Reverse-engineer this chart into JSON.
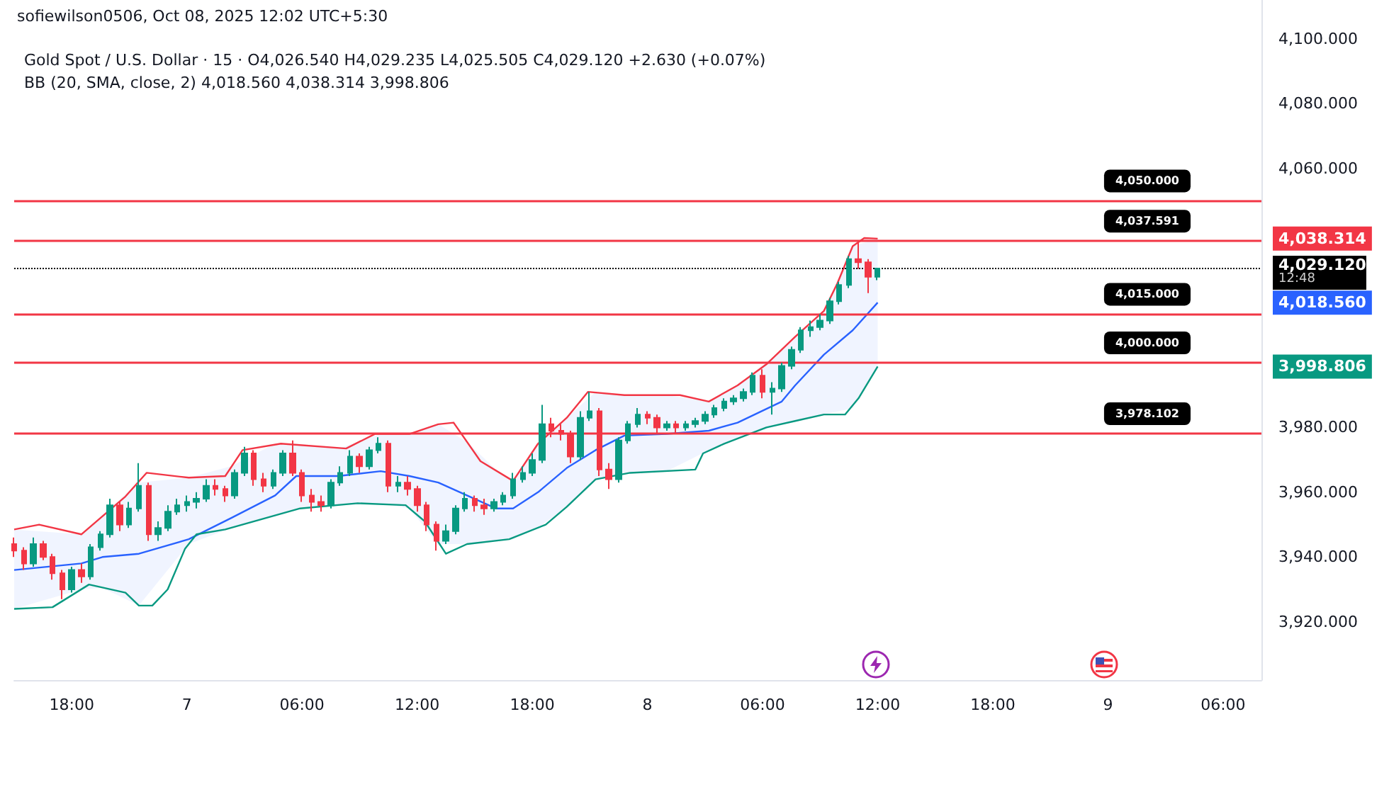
{
  "chart_data": {
    "type": "candlestick",
    "title": "Gold Spot / U.S. Dollar · 15 · O4,026.540 H4,029.235 L4,025.505 C4,029.120 +2.630 (+0.07%)",
    "subtitle": "BB (20, SMA, close, 2) 4,018.560 4,038.314 3,998.806",
    "annotations": [
      "sofiewilson0506, Oct 08, 2025 12:02 UTC+5:30",
      "12:48"
    ],
    "xlim": [
      "2025-10-06T15:00",
      "2025-10-09T08:00"
    ],
    "xticks": [
      {
        "value": "2025-10-06T18:00",
        "label": "18:00"
      },
      {
        "value": "2025-10-07T00:00",
        "label": "7"
      },
      {
        "value": "2025-10-07T06:00",
        "label": "06:00"
      },
      {
        "value": "2025-10-07T12:00",
        "label": "12:00"
      },
      {
        "value": "2025-10-07T18:00",
        "label": "18:00"
      },
      {
        "value": "2025-10-08T00:00",
        "label": "8"
      },
      {
        "value": "2025-10-08T06:00",
        "label": "06:00"
      },
      {
        "value": "2025-10-08T12:00",
        "label": "12:00"
      },
      {
        "value": "2025-10-08T18:00",
        "label": "18:00"
      },
      {
        "value": "2025-10-09T00:00",
        "label": "9"
      },
      {
        "value": "2025-10-09T06:00",
        "label": "06:00"
      }
    ],
    "ylim": [
      3902,
      4112
    ],
    "yticks": [
      {
        "value": 3920,
        "label": "3,920.000"
      },
      {
        "value": 3940,
        "label": "3,940.000"
      },
      {
        "value": 3960,
        "label": "3,960.000"
      },
      {
        "value": 3980,
        "label": "3,980.000"
      },
      {
        "value": 3998.806,
        "label": "3,998.806"
      },
      {
        "value": 4018.56,
        "label": "4,018.560"
      },
      {
        "value": 4038.314,
        "label": "4,038.314"
      },
      {
        "value": 4060,
        "label": "4,060.000"
      },
      {
        "value": 4080,
        "label": "4,080.000"
      },
      {
        "value": 4100,
        "label": "4,100.000"
      }
    ],
    "ref_lines": [
      {
        "axis": "y",
        "value": 4050,
        "label": "4,050.000",
        "color": "#f23645",
        "line_style": "solid"
      },
      {
        "axis": "y",
        "value": 4037.591,
        "label": "4,037.591",
        "color": "#f23645",
        "line_style": "solid"
      },
      {
        "axis": "y",
        "value": 4015,
        "label": "4,015.000",
        "color": "#f23645",
        "line_style": "solid"
      },
      {
        "axis": "y",
        "value": 4000,
        "label": "4,000.000",
        "color": "#f23645",
        "line_style": "solid"
      },
      {
        "axis": "y",
        "value": 3978.102,
        "label": "3,978.102",
        "color": "#f23645",
        "line_style": "solid"
      },
      {
        "axis": "y",
        "value": 4029.12,
        "label": "4,029.120",
        "color": "#000000",
        "line_style": "dotted"
      }
    ],
    "series": [
      {
        "x": [
          "2025-10-06T15:00",
          "2025-10-06T15:30",
          "2025-10-06T16:00",
          "2025-10-06T16:30",
          "2025-10-06T17:00",
          "2025-10-06T17:30",
          "2025-10-06T18:00",
          "2025-10-06T18:30",
          "2025-10-06T19:00",
          "2025-10-06T19:30",
          "2025-10-06T20:00",
          "2025-10-06T20:30",
          "2025-10-06T21:00",
          "2025-10-06T21:30",
          "2025-10-06T22:00",
          "2025-10-06T22:30",
          "2025-10-06T23:00",
          "2025-10-06T23:30",
          "2025-10-07T00:00",
          "2025-10-07T00:30",
          "2025-10-07T01:00",
          "2025-10-07T01:30",
          "2025-10-07T02:00",
          "2025-10-07T02:30",
          "2025-10-07T03:00",
          "2025-10-07T03:30",
          "2025-10-07T04:00",
          "2025-10-07T04:30",
          "2025-10-07T05:00",
          "2025-10-07T05:30",
          "2025-10-07T06:00",
          "2025-10-07T06:30",
          "2025-10-07T07:00",
          "2025-10-07T07:30",
          "2025-10-07T08:00",
          "2025-10-07T08:30",
          "2025-10-07T09:00",
          "2025-10-07T09:30",
          "2025-10-07T10:00",
          "2025-10-07T10:30",
          "2025-10-07T11:00",
          "2025-10-07T11:30",
          "2025-10-07T12:00",
          "2025-10-07T12:30",
          "2025-10-07T13:00",
          "2025-10-07T13:30",
          "2025-10-07T14:00",
          "2025-10-07T14:30",
          "2025-10-07T15:00",
          "2025-10-07T15:30",
          "2025-10-07T16:00",
          "2025-10-07T16:30",
          "2025-10-07T17:00",
          "2025-10-07T17:30",
          "2025-10-07T18:00",
          "2025-10-07T18:30",
          "2025-10-07T19:00",
          "2025-10-07T19:30",
          "2025-10-07T20:00",
          "2025-10-07T20:30",
          "2025-10-07T21:00",
          "2025-10-07T21:30",
          "2025-10-07T22:00",
          "2025-10-07T22:30",
          "2025-10-07T23:00",
          "2025-10-07T23:30",
          "2025-10-08T00:00",
          "2025-10-08T00:30",
          "2025-10-08T01:00",
          "2025-10-08T01:30",
          "2025-10-08T02:00",
          "2025-10-08T02:30",
          "2025-10-08T03:00",
          "2025-10-08T03:30",
          "2025-10-08T04:00",
          "2025-10-08T04:30",
          "2025-10-08T05:00",
          "2025-10-08T05:30",
          "2025-10-08T06:00",
          "2025-10-08T06:30",
          "2025-10-08T07:00",
          "2025-10-08T07:30",
          "2025-10-08T08:00",
          "2025-10-08T08:30",
          "2025-10-08T09:00",
          "2025-10-08T09:30",
          "2025-10-08T10:00",
          "2025-10-08T10:30",
          "2025-10-08T11:00",
          "2025-10-08T11:30",
          "2025-10-08T12:00"
        ],
        "ohlc": [
          [
            3944,
            3946,
            3940,
            3942
          ],
          [
            3942,
            3943,
            3936,
            3938
          ],
          [
            3938,
            3946,
            3937,
            3944
          ],
          [
            3944,
            3945,
            3939,
            3940
          ],
          [
            3940,
            3941,
            3933,
            3935
          ],
          [
            3935,
            3936,
            3927,
            3930
          ],
          [
            3930,
            3937,
            3929,
            3936
          ],
          [
            3936,
            3938,
            3932,
            3934
          ],
          [
            3934,
            3944,
            3933,
            3943
          ],
          [
            3943,
            3948,
            3942,
            3947
          ],
          [
            3947,
            3958,
            3946,
            3956
          ],
          [
            3956,
            3957,
            3948,
            3950
          ],
          [
            3950,
            3957,
            3949,
            3955
          ],
          [
            3955,
            3969,
            3954,
            3962
          ],
          [
            3962,
            3963,
            3945,
            3947
          ],
          [
            3947,
            3951,
            3945,
            3949
          ],
          [
            3949,
            3956,
            3948,
            3954
          ],
          [
            3954,
            3958,
            3953,
            3956
          ],
          [
            3956,
            3959,
            3954,
            3957
          ],
          [
            3957,
            3960,
            3955,
            3958
          ],
          [
            3958,
            3964,
            3957,
            3962
          ],
          [
            3962,
            3964,
            3959,
            3961
          ],
          [
            3961,
            3962,
            3957,
            3959
          ],
          [
            3959,
            3967,
            3958,
            3966
          ],
          [
            3966,
            3974,
            3965,
            3972
          ],
          [
            3972,
            3973,
            3962,
            3964
          ],
          [
            3964,
            3966,
            3960,
            3962
          ],
          [
            3962,
            3967,
            3961,
            3966
          ],
          [
            3966,
            3973,
            3965,
            3972
          ],
          [
            3972,
            3976,
            3965,
            3966
          ],
          [
            3966,
            3967,
            3957,
            3959
          ],
          [
            3959,
            3961,
            3954,
            3957
          ],
          [
            3957,
            3959,
            3954,
            3956
          ],
          [
            3956,
            3964,
            3955,
            3963
          ],
          [
            3963,
            3968,
            3962,
            3966
          ],
          [
            3966,
            3973,
            3965,
            3971
          ],
          [
            3971,
            3972,
            3966,
            3968
          ],
          [
            3968,
            3974,
            3967,
            3973
          ],
          [
            3973,
            3977,
            3972,
            3975
          ],
          [
            3975,
            3976,
            3960,
            3962
          ],
          [
            3962,
            3965,
            3960,
            3963
          ],
          [
            3963,
            3965,
            3959,
            3961
          ],
          [
            3961,
            3962,
            3954,
            3956
          ],
          [
            3956,
            3957,
            3948,
            3950
          ],
          [
            3950,
            3951,
            3942,
            3945
          ],
          [
            3945,
            3950,
            3944,
            3948
          ],
          [
            3948,
            3956,
            3947,
            3955
          ],
          [
            3955,
            3960,
            3954,
            3958
          ],
          [
            3958,
            3959,
            3954,
            3956
          ],
          [
            3956,
            3958,
            3953,
            3955
          ],
          [
            3955,
            3958,
            3954,
            3957
          ],
          [
            3957,
            3960,
            3956,
            3959
          ],
          [
            3959,
            3966,
            3958,
            3964
          ],
          [
            3964,
            3968,
            3963,
            3966
          ],
          [
            3966,
            3972,
            3965,
            3970
          ],
          [
            3970,
            3987,
            3969,
            3981
          ],
          [
            3981,
            3983,
            3977,
            3979
          ],
          [
            3979,
            3981,
            3976,
            3978
          ],
          [
            3978,
            3979,
            3969,
            3971
          ],
          [
            3971,
            3985,
            3970,
            3983
          ],
          [
            3983,
            3991,
            3982,
            3985
          ],
          [
            3985,
            3986,
            3965,
            3967
          ],
          [
            3967,
            3969,
            3961,
            3964
          ],
          [
            3964,
            3977,
            3963,
            3976
          ],
          [
            3976,
            3982,
            3975,
            3981
          ],
          [
            3981,
            3986,
            3980,
            3984
          ],
          [
            3984,
            3985,
            3981,
            3983
          ],
          [
            3983,
            3984,
            3978,
            3980
          ],
          [
            3980,
            3982,
            3979,
            3981
          ],
          [
            3981,
            3982,
            3978,
            3980
          ],
          [
            3980,
            3982,
            3979,
            3981
          ],
          [
            3981,
            3983,
            3980,
            3982
          ],
          [
            3982,
            3985,
            3981,
            3984
          ],
          [
            3984,
            3987,
            3983,
            3986
          ],
          [
            3986,
            3989,
            3985,
            3988
          ],
          [
            3988,
            3990,
            3987,
            3989
          ],
          [
            3989,
            3992,
            3988,
            3991
          ],
          [
            3991,
            3997,
            3990,
            3996
          ],
          [
            3996,
            3998,
            3989,
            3991
          ],
          [
            3991,
            3994,
            3984,
            3992
          ],
          [
            3992,
            4000,
            3991,
            3999
          ],
          [
            3999,
            4005,
            3998,
            4004
          ],
          [
            4004,
            4011,
            4003,
            4010
          ],
          [
            4010,
            4013,
            4008,
            4011
          ],
          [
            4011,
            4015,
            4010,
            4013
          ],
          [
            4013,
            4020,
            4012,
            4019
          ],
          [
            4019,
            4025,
            4018,
            4024
          ],
          [
            4024,
            4033,
            4023,
            4032
          ],
          [
            4032,
            4037,
            4029,
            4031
          ],
          [
            4031,
            4032,
            4021.5,
            4026.54
          ],
          [
            4026.54,
            4029.235,
            4025.505,
            4029.12
          ]
        ],
        "colors": [
          "#f23645",
          "#f23645",
          "#089981",
          "#f23645",
          "#f23645",
          "#f23645",
          "#089981",
          "#f23645",
          "#089981",
          "#089981",
          "#089981",
          "#f23645",
          "#089981",
          "#089981",
          "#f23645",
          "#089981",
          "#089981",
          "#089981",
          "#089981",
          "#089981",
          "#089981",
          "#f23645",
          "#f23645",
          "#089981",
          "#089981",
          "#f23645",
          "#f23645",
          "#089981",
          "#089981",
          "#f23645",
          "#f23645",
          "#f23645",
          "#f23645",
          "#089981",
          "#089981",
          "#089981",
          "#f23645",
          "#089981",
          "#089981",
          "#f23645",
          "#089981",
          "#f23645",
          "#f23645",
          "#f23645",
          "#f23645",
          "#089981",
          "#089981",
          "#089981",
          "#f23645",
          "#f23645",
          "#089981",
          "#089981",
          "#089981",
          "#089981",
          "#089981",
          "#089981",
          "#f23645",
          "#f23645",
          "#f23645",
          "#089981",
          "#089981",
          "#f23645",
          "#f23645",
          "#089981",
          "#089981",
          "#089981",
          "#f23645",
          "#f23645",
          "#089981",
          "#f23645",
          "#089981",
          "#089981",
          "#089981",
          "#089981",
          "#089981",
          "#089981",
          "#089981",
          "#089981",
          "#f23645",
          "#089981",
          "#089981",
          "#089981",
          "#089981",
          "#089981",
          "#089981",
          "#089981",
          "#089981",
          "#089981",
          "#f23645",
          "#f23645",
          "#089981"
        ]
      },
      {
        "type": "line",
        "color": "#f23645",
        "x": [
          "2025-10-06T15:00",
          "2025-10-06T16:18",
          "2025-10-06T18:30",
          "2025-10-06T20:48",
          "2025-10-06T21:54",
          "2025-10-07T00:06",
          "2025-10-07T02:00",
          "2025-10-07T02:54",
          "2025-10-07T04:54",
          "2025-10-07T08:18",
          "2025-10-07T09:48",
          "2025-10-07T11:36",
          "2025-10-07T13:06",
          "2025-10-07T13:54",
          "2025-10-07T15:18",
          "2025-10-07T17:00",
          "2025-10-07T18:18",
          "2025-10-07T19:48",
          "2025-10-07T20:54",
          "2025-10-07T22:48",
          "2025-10-08T01:42",
          "2025-10-08T03:12",
          "2025-10-08T04:42",
          "2025-10-08T06:12",
          "2025-10-08T07:42",
          "2025-10-08T09:12",
          "2025-10-08T09:54",
          "2025-10-08T10:42",
          "2025-10-08T11:18",
          "2025-10-08T12:00"
        ],
        "values": [
          3948.5,
          3950,
          3947,
          3958.7,
          3966,
          3964.5,
          3965,
          3973,
          3975,
          3973.5,
          3978,
          3978,
          3981,
          3981.5,
          3969.6,
          3963.5,
          3975,
          3983,
          3991,
          3990,
          3990,
          3988,
          3993,
          3999.5,
          4008,
          4016,
          4024.5,
          4036,
          4038.5,
          4038.314
        ]
      },
      {
        "type": "line",
        "color": "#2962ff",
        "x": [
          "2025-10-06T15:00",
          "2025-10-06T18:30",
          "2025-10-06T19:36",
          "2025-10-06T21:30",
          "2025-10-07T00:06",
          "2025-10-07T02:18",
          "2025-10-07T04:36",
          "2025-10-07T05:42",
          "2025-10-07T07:54",
          "2025-10-07T10:06",
          "2025-10-07T11:36",
          "2025-10-07T13:06",
          "2025-10-07T14:36",
          "2025-10-07T16:06",
          "2025-10-07T17:00",
          "2025-10-07T18:18",
          "2025-10-07T19:48",
          "2025-10-07T21:18",
          "2025-10-07T22:48",
          "2025-10-08T01:00",
          "2025-10-08T03:12",
          "2025-10-08T04:42",
          "2025-10-08T07:00",
          "2025-10-08T07:42",
          "2025-10-08T09:12",
          "2025-10-08T10:42",
          "2025-10-08T12:00"
        ],
        "values": [
          3936,
          3938,
          3940,
          3941,
          3945.5,
          3952,
          3959,
          3965,
          3965,
          3966.5,
          3965,
          3963,
          3959,
          3955,
          3955,
          3960,
          3967.5,
          3973,
          3977.5,
          3978,
          3979,
          3981.5,
          3988,
          3993,
          4002.5,
          4010,
          4018.56
        ],
        "upper": [
          3948.5,
          3947,
          3953,
          3963,
          3964.5,
          3968,
          3975,
          3975,
          3973.5,
          3978,
          3978,
          3981,
          3975.5,
          3967,
          3963.5,
          3975,
          3983,
          3991,
          3990,
          3990,
          3988,
          3993,
          4004,
          4008,
          4016,
          4036,
          4038.314
        ],
        "lower": [
          3924,
          3930,
          3930.5,
          3925,
          3944,
          3949,
          3953,
          3955,
          3956,
          3956.5,
          3955,
          3944,
          3944,
          3945,
          3945.5,
          3949,
          3955.5,
          3964,
          3966,
          3966.5,
          3973,
          3976.5,
          3981,
          3982,
          3984,
          3986,
          3998.806
        ]
      },
      {
        "type": "line",
        "color": "#089981",
        "x": [
          "2025-10-06T15:00",
          "2025-10-06T17:00",
          "2025-10-06T18:54",
          "2025-10-06T20:48",
          "2025-10-06T21:30",
          "2025-10-06T22:12",
          "2025-10-06T23:00",
          "2025-10-06T23:54",
          "2025-10-07T00:30",
          "2025-10-07T02:00",
          "2025-10-07T05:54",
          "2025-10-07T08:54",
          "2025-10-07T11:24",
          "2025-10-07T12:24",
          "2025-10-07T13:30",
          "2025-10-07T14:36",
          "2025-10-07T16:48",
          "2025-10-07T18:42",
          "2025-10-07T19:48",
          "2025-10-07T21:18",
          "2025-10-07T23:06",
          "2025-10-08T02:30",
          "2025-10-08T02:54",
          "2025-10-08T04:00",
          "2025-10-08T06:12",
          "2025-10-08T07:42",
          "2025-10-08T09:12",
          "2025-10-08T10:18",
          "2025-10-08T11:00",
          "2025-10-08T12:00"
        ],
        "values": [
          3924,
          3924.5,
          3931.5,
          3929,
          3925,
          3925,
          3930,
          3942.5,
          3947,
          3948.5,
          3955,
          3956.6,
          3956,
          3951,
          3941,
          3944,
          3945.5,
          3950,
          3955.5,
          3964,
          3966,
          3967,
          3972,
          3975,
          3980,
          3982,
          3984,
          3984,
          3989,
          3998.806
        ]
      }
    ]
  }
}
